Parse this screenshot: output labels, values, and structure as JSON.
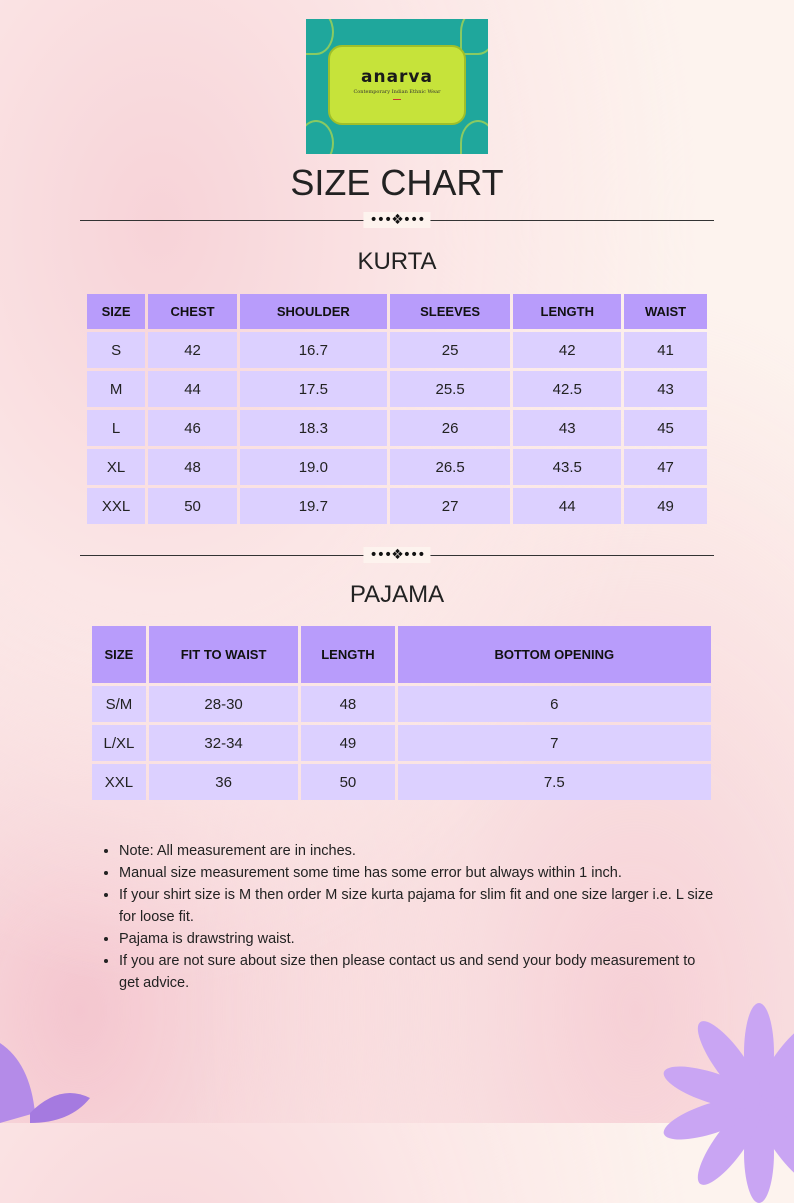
{
  "logo": {
    "brand": "anarva",
    "tagline": "Contemporary Indian Ethnic Wear"
  },
  "title": "SIZE CHART",
  "ornament": "•••❖•••",
  "kurta": {
    "title": "KURTA",
    "headers": [
      "SIZE",
      "CHEST",
      "SHOULDER",
      "SLEEVES",
      "LENGTH",
      "WAIST"
    ],
    "rows": [
      [
        "S",
        "42",
        "16.7",
        "25",
        "42",
        "41"
      ],
      [
        "M",
        "44",
        "17.5",
        "25.5",
        "42.5",
        "43"
      ],
      [
        "L",
        "46",
        "18.3",
        "26",
        "43",
        "45"
      ],
      [
        "XL",
        "48",
        "19.0",
        "26.5",
        "43.5",
        "47"
      ],
      [
        "XXL",
        "50",
        "19.7",
        "27",
        "44",
        "49"
      ]
    ]
  },
  "pajama": {
    "title": "PAJAMA",
    "headers": [
      "SIZE",
      "FIT TO WAIST",
      "LENGTH",
      "BOTTOM OPENING"
    ],
    "rows": [
      [
        "S/M",
        "28-30",
        "48",
        "6"
      ],
      [
        "L/XL",
        "32-34",
        "49",
        "7"
      ],
      [
        "XXL",
        "36",
        "50",
        "7.5"
      ]
    ]
  },
  "notes": [
    "Note: All measurement are in inches.",
    "Manual size measurement some time has some error but always  within 1 inch.",
    "If your shirt size is M then order M size kurta pajama for slim fit and one size larger i.e. L size for loose fit.",
    "Pajama is drawstring waist.",
    "If you are not sure about size then please contact us and send your body measurement to get advice."
  ],
  "colors": {
    "header": "#b89cfb",
    "cell": "#dcd0ff",
    "logo_bg": "#1fa79c",
    "logo_plate": "#c6e33a"
  }
}
